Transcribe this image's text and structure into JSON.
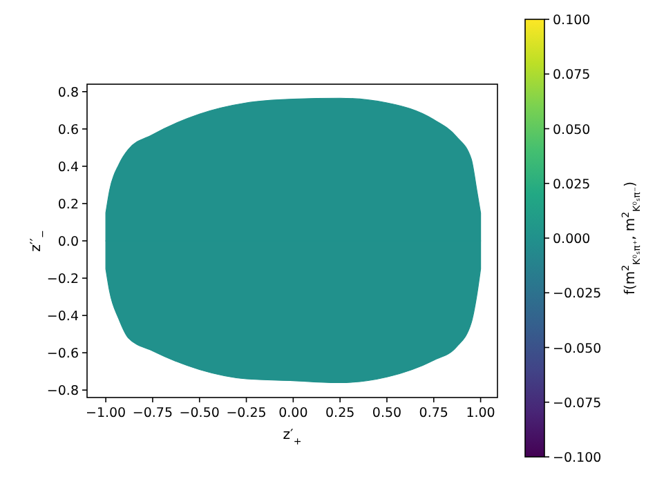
{
  "chart_data": {
    "type": "area",
    "xlabel": "z′$_{+}$",
    "ylabel": "z′′$_{−}$",
    "clabel": "f(m$^{2}$$_{K⁰ₛπ⁺}$, m$^{2}$$_{K⁰ₛπ⁻}$)",
    "x": [
      -1.0,
      -0.98,
      -0.93,
      -0.88,
      -0.75,
      -0.5,
      -0.25,
      0,
      0.25,
      0.5,
      0.75,
      0.87,
      0.95,
      0.98,
      1.0
    ],
    "series": [
      {
        "color": "#21918c",
        "values": [
          0.15,
          0.27,
          0.41,
          0.49,
          0.57,
          0.68,
          0.74,
          0.76,
          0.765,
          0.74,
          0.65,
          0.56,
          0.44,
          0.27,
          0.15
        ]
      },
      {
        "color": "#21918c",
        "values": [
          -0.15,
          -0.27,
          -0.42,
          -0.52,
          -0.59,
          -0.69,
          -0.74,
          -0.75,
          -0.76,
          -0.73,
          -0.64,
          -0.57,
          -0.44,
          -0.29,
          -0.15
        ]
      }
    ],
    "xlim": [
      -1.1,
      1.09
    ],
    "ylim": [
      -0.84,
      0.84
    ],
    "xticks": [
      {
        "value": -1,
        "label": "−1.00"
      },
      {
        "value": -0.75,
        "label": "−0.75"
      },
      {
        "value": -0.5,
        "label": "−0.50"
      },
      {
        "value": -0.25,
        "label": "−0.25"
      },
      {
        "value": 0,
        "label": "0.00"
      },
      {
        "value": 0.25,
        "label": "0.25"
      },
      {
        "value": 0.5,
        "label": "0.50"
      },
      {
        "value": 0.75,
        "label": "0.75"
      },
      {
        "value": 1,
        "label": "1.00"
      }
    ],
    "yticks": [
      {
        "value": -0.8,
        "label": "−0.8"
      },
      {
        "value": -0.6,
        "label": "−0.6"
      },
      {
        "value": -0.4,
        "label": "−0.4"
      },
      {
        "value": -0.2,
        "label": "−0.2"
      },
      {
        "value": 0,
        "label": "0.0"
      },
      {
        "value": 0.2,
        "label": "0.2"
      },
      {
        "value": 0.4,
        "label": "0.4"
      },
      {
        "value": 0.6,
        "label": "0.6"
      },
      {
        "value": 0.8,
        "label": "0.8"
      }
    ],
    "clim": [
      -0.1,
      0.1
    ],
    "cticks": [
      {
        "value": -0.1,
        "label": "−0.100"
      },
      {
        "value": -0.075,
        "label": "−0.075"
      },
      {
        "value": -0.05,
        "label": "−0.050"
      },
      {
        "value": -0.025,
        "label": "−0.025"
      },
      {
        "value": 0,
        "label": "0.000"
      },
      {
        "value": 0.025,
        "label": "0.025"
      },
      {
        "value": 0.05,
        "label": "0.050"
      },
      {
        "value": 0.075,
        "label": "0.075"
      },
      {
        "value": 0.1,
        "label": "0.100"
      }
    ]
  }
}
